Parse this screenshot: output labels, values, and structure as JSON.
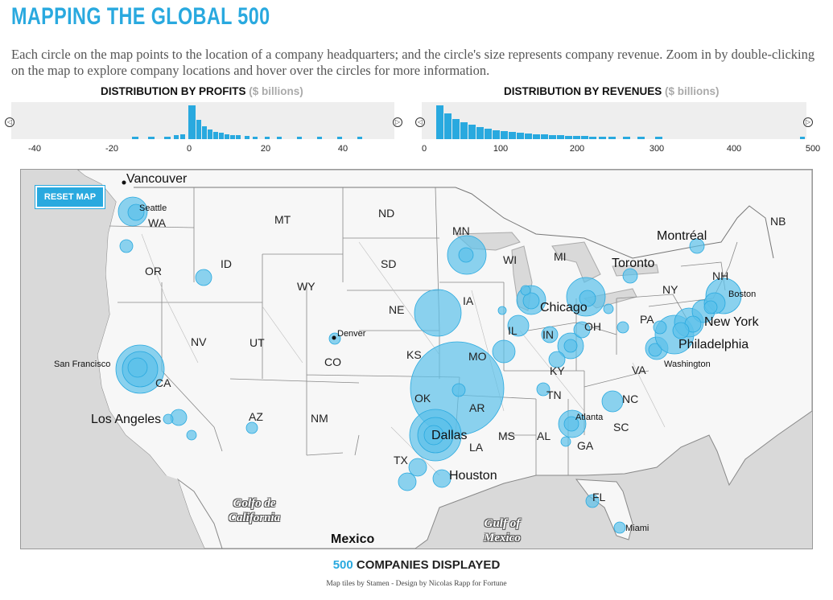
{
  "header": {
    "title": "MAPPING THE GLOBAL 500",
    "description": "Each circle on the map points to the location of a company headquarters; and the circle's size represents company revenue. Zoom in by double-clicking on the map to explore company locations and hover over the circles for more information."
  },
  "profits": {
    "title": "DISTRIBUTION BY PROFITS",
    "unit": "($ billions)",
    "ticks": [
      "-40",
      "-20",
      "0",
      "20",
      "40"
    ]
  },
  "revenues": {
    "title": "DISTRIBUTION BY REVENUES",
    "unit": "($ billions)",
    "ticks": [
      "0",
      "100",
      "200",
      "300",
      "400",
      "500"
    ]
  },
  "map": {
    "reset_label": "RESET MAP",
    "states": [
      "WA",
      "MT",
      "ND",
      "MN",
      "NB",
      "OR",
      "ID",
      "WI",
      "MI",
      "SD",
      "WY",
      "NY",
      "NH",
      "IA",
      "NE",
      "PA",
      "NV",
      "UT",
      "IL",
      "IN",
      "OH",
      "CO",
      "KS",
      "MO",
      "CA",
      "KY",
      "VA",
      "OK",
      "AR",
      "TN",
      "NC",
      "AZ",
      "NM",
      "SC",
      "MS",
      "AL",
      "GA",
      "LA",
      "TX",
      "FL"
    ],
    "cities": [
      "Vancouver",
      "Seattle",
      "Montréal",
      "Toronto",
      "Boston",
      "Chicago",
      "Denver",
      "New York",
      "Philadelphia",
      "San Francisco",
      "Washington",
      "Los Angeles",
      "Atlanta",
      "Dallas",
      "Houston",
      "Miami",
      "Mexico"
    ],
    "gulfs": [
      [
        "Golfo de",
        "California"
      ],
      [
        "Gulf of",
        "Mexico"
      ]
    ]
  },
  "footer": {
    "count": "500",
    "count_label": "COMPANIES DISPLAYED",
    "credit": "Map tiles by Stamen - Design by Nicolas Rapp for Fortune"
  },
  "colors": {
    "accent": "#29a9df",
    "bubble": "#5bc0ea"
  }
}
